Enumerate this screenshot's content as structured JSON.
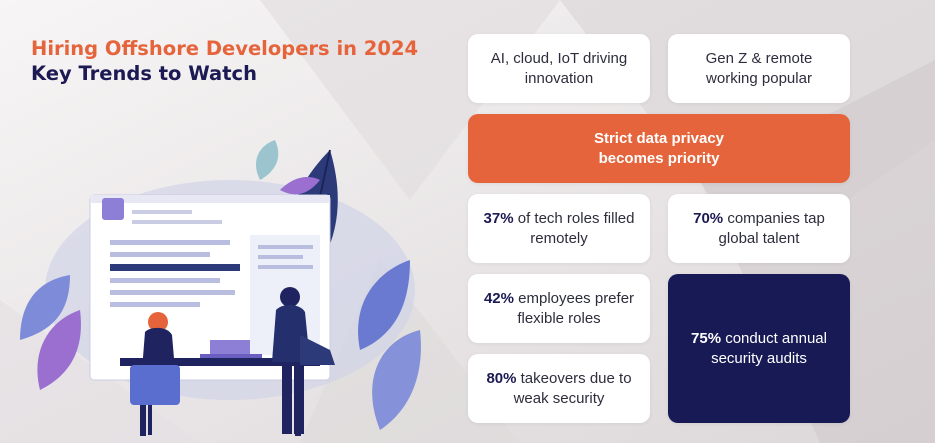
{
  "header": {
    "title_line1": "Hiring Offshore Developers in 2024",
    "title_line2": "Key Trends to Watch"
  },
  "colors": {
    "orange": "#e5643b",
    "navy": "#181a56",
    "white": "#ffffff",
    "background": "#ece9ea"
  },
  "cards": {
    "ai_cloud": {
      "text": "AI, cloud, IoT driving innovation"
    },
    "genz": {
      "text": "Gen Z & remote working popular"
    },
    "privacy": {
      "text": "Strict data privacy becomes priority"
    },
    "remote_roles": {
      "stat": "37%",
      "text": "of tech roles filled remotely"
    },
    "global_talent": {
      "stat": "70%",
      "text": "companies tap global talent"
    },
    "flexible": {
      "stat": "42%",
      "text": "employees prefer flexible roles"
    },
    "audits": {
      "stat": "75%",
      "text": "conduct annual security audits"
    },
    "takeovers": {
      "stat": "80%",
      "text": "takeovers due to weak security"
    }
  },
  "illustration": {
    "icons": [
      "document-icon",
      "leaf-icon",
      "person-icon",
      "laptop-icon",
      "chair-icon"
    ]
  }
}
